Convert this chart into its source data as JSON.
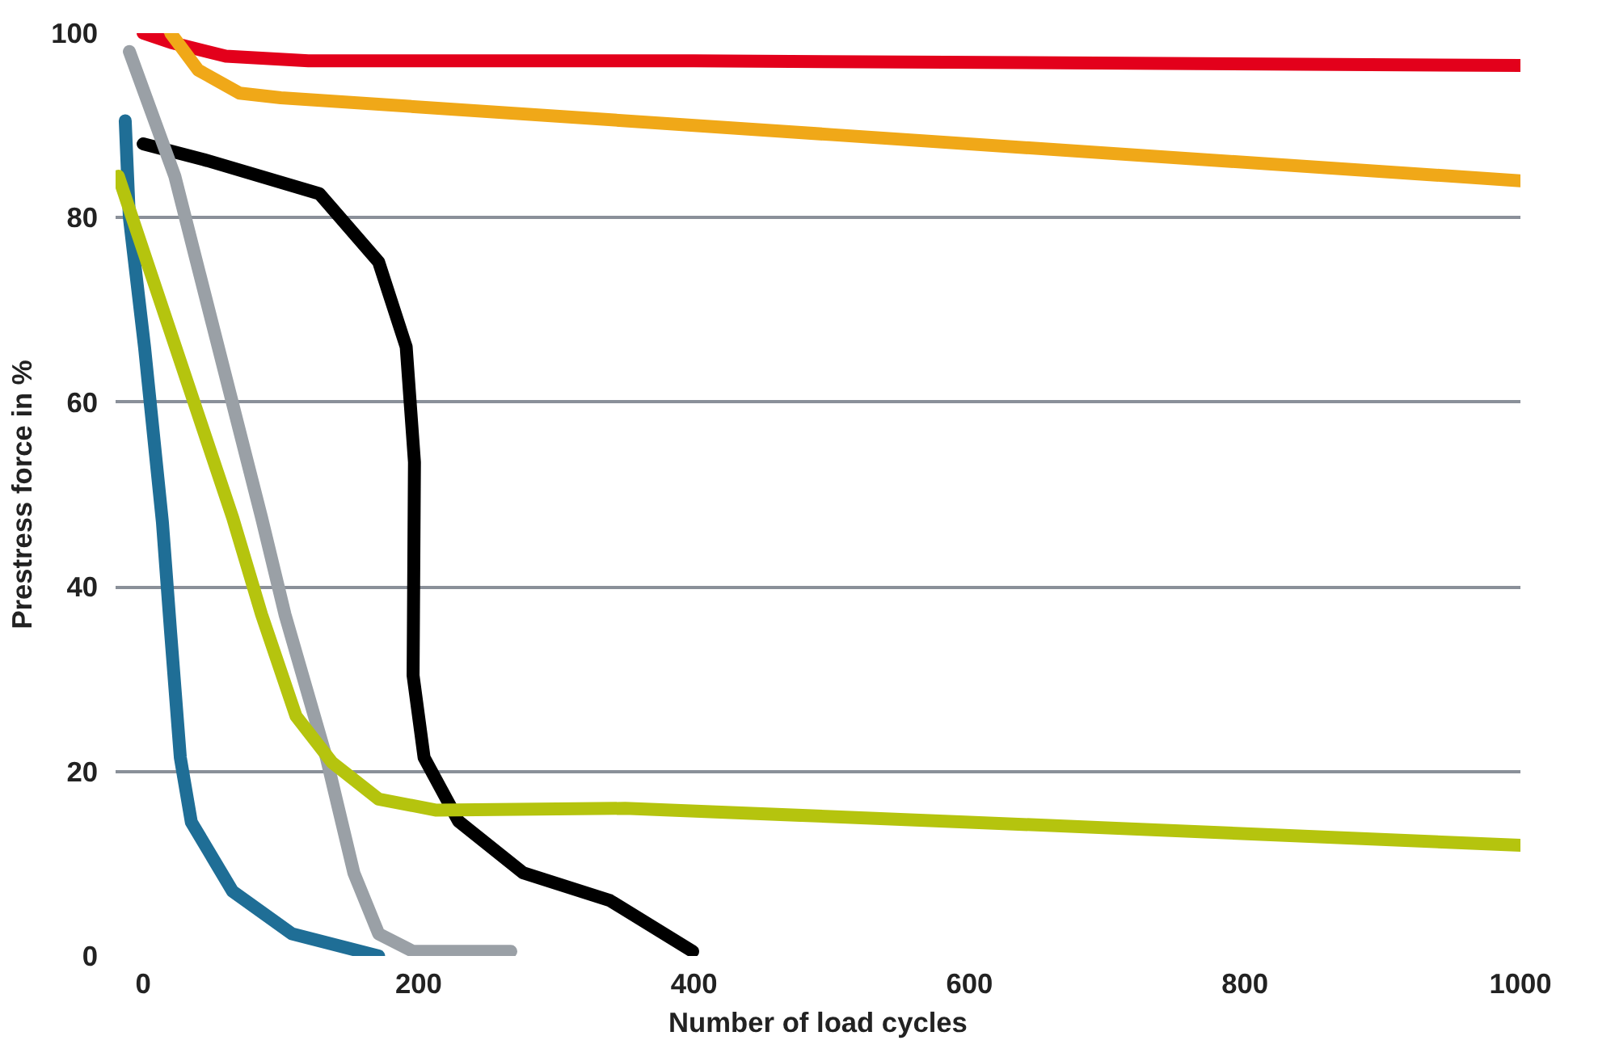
{
  "chart_data": {
    "type": "line",
    "xlabel": "Number of load cycles",
    "ylabel": "Prestress force in %",
    "xlim": [
      -20,
      1000
    ],
    "ylim": [
      0,
      100
    ],
    "xticks": [
      0,
      200,
      400,
      600,
      800,
      1000
    ],
    "yticks": [
      0,
      20,
      40,
      60,
      80,
      100
    ],
    "grid": "y",
    "marker": "none",
    "line_style": "solid",
    "series": [
      {
        "color": "#e3001b",
        "x": [
          0,
          20,
          60,
          120,
          400,
          1000
        ],
        "values": [
          100,
          99,
          97.5,
          97,
          97,
          96.5
        ]
      },
      {
        "color": "#f0a818",
        "x": [
          20,
          40,
          70,
          100,
          500,
          1000
        ],
        "values": [
          100,
          96,
          93.5,
          93,
          89,
          84
        ]
      },
      {
        "color": "#000000",
        "x": [
          0,
          44,
          128,
          171,
          191,
          197,
          196,
          204,
          229,
          276,
          339,
          399
        ],
        "values": [
          88,
          86.3,
          82.6,
          75.2,
          66,
          53.5,
          30.4,
          21.5,
          14.6,
          9,
          6,
          0.5
        ]
      },
      {
        "color": "#9aa0a6",
        "x": [
          -10,
          23,
          86,
          103,
          133,
          153,
          171,
          196,
          267
        ],
        "values": [
          98,
          84.5,
          47.5,
          37,
          21.5,
          9,
          2.4,
          0.5,
          0.5
        ]
      },
      {
        "color": "#1f6e96",
        "x": [
          -13,
          -10,
          1,
          14,
          20,
          27,
          35,
          65,
          108,
          171
        ],
        "values": [
          90.5,
          80,
          66,
          47,
          35,
          21.5,
          14.5,
          7,
          2.4,
          0
        ]
      },
      {
        "color": "#b5c40e",
        "x": [
          -18,
          65,
          86,
          111,
          137,
          171,
          213,
          350,
          600,
          1000
        ],
        "values": [
          84.5,
          47.5,
          37,
          26,
          21,
          17,
          15.8,
          16,
          14.5,
          12
        ]
      }
    ]
  }
}
